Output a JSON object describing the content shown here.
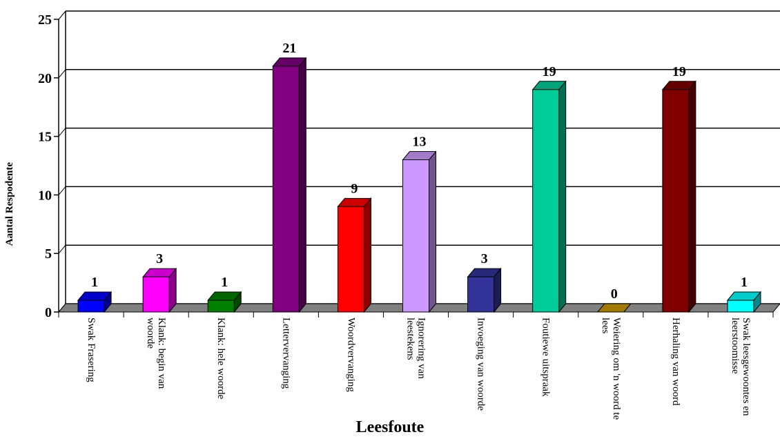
{
  "chart_data": {
    "type": "bar3d",
    "x_label": "Leesfoute",
    "y_label": "Aantal Respodente",
    "categories": [
      "Swak Frasering",
      "Klank: begin van woorde",
      "Klank: hele woorde",
      "Lettervervanging",
      "Woordvervanging",
      "Ignorering van leestekens",
      "Invoeging van woorde",
      "Foutiewe uitspraak",
      "Weiering om 'n woord te lees",
      "Herhaling van woord",
      "Swak leesgewoontes en leerstoomisse"
    ],
    "values": [
      1,
      3,
      1,
      21,
      9,
      13,
      3,
      19,
      0,
      19,
      1
    ],
    "colors": [
      "#0000ff",
      "#ff00ff",
      "#008000",
      "#800080",
      "#ff0000",
      "#cc99ff",
      "#333399",
      "#00cc99",
      "#cc9900",
      "#800000",
      "#00ffff"
    ],
    "ylim": [
      0,
      25
    ],
    "yticks": [
      0,
      5,
      10,
      15,
      20,
      25
    ],
    "grid": true
  }
}
